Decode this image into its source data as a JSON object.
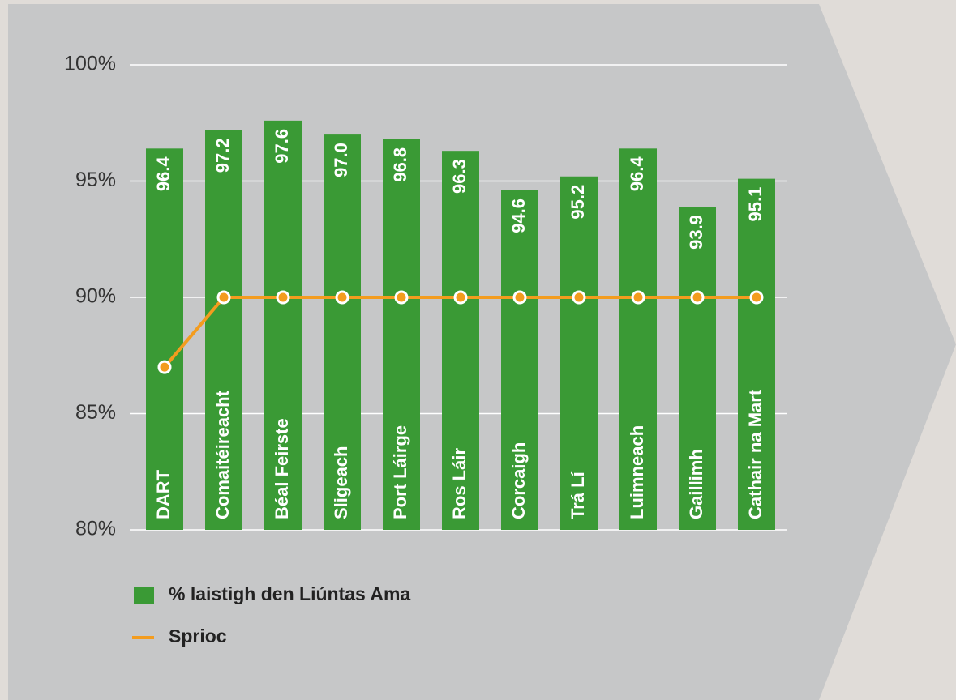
{
  "chart_data": {
    "type": "bar",
    "categories": [
      "DART",
      "Comaitéireacht",
      "Béal Feirste",
      "Sligeach",
      "Port Láirge",
      "Ros Láir",
      "Corcaigh",
      "Trá Lí",
      "Luimneach",
      "Gaillimh",
      "Cathair na Mart"
    ],
    "series": [
      {
        "name": "% laistigh den Liúntas Ama",
        "type": "bar",
        "color": "#3a9a35",
        "values": [
          96.4,
          97.2,
          97.6,
          97.0,
          96.8,
          96.3,
          94.6,
          95.2,
          96.4,
          93.9,
          95.1
        ],
        "value_labels": [
          "96.4",
          "97.2",
          "97.6",
          "97.0",
          "96.8",
          "96.3",
          "94.6",
          "95.2",
          "96.4",
          "93.9",
          "95.1"
        ]
      },
      {
        "name": "Sprioc",
        "type": "line",
        "color": "#f39c1e",
        "values": [
          87,
          90,
          90,
          90,
          90,
          90,
          90,
          90,
          90,
          90,
          90
        ]
      }
    ],
    "ylim": [
      80,
      100
    ],
    "yticks": [
      {
        "value": 80,
        "label": "80%"
      },
      {
        "value": 85,
        "label": "85%"
      },
      {
        "value": 90,
        "label": "90%"
      },
      {
        "value": 95,
        "label": "95%"
      },
      {
        "value": 100,
        "label": "100%"
      }
    ],
    "grid": true,
    "legend": "bottom-left"
  }
}
